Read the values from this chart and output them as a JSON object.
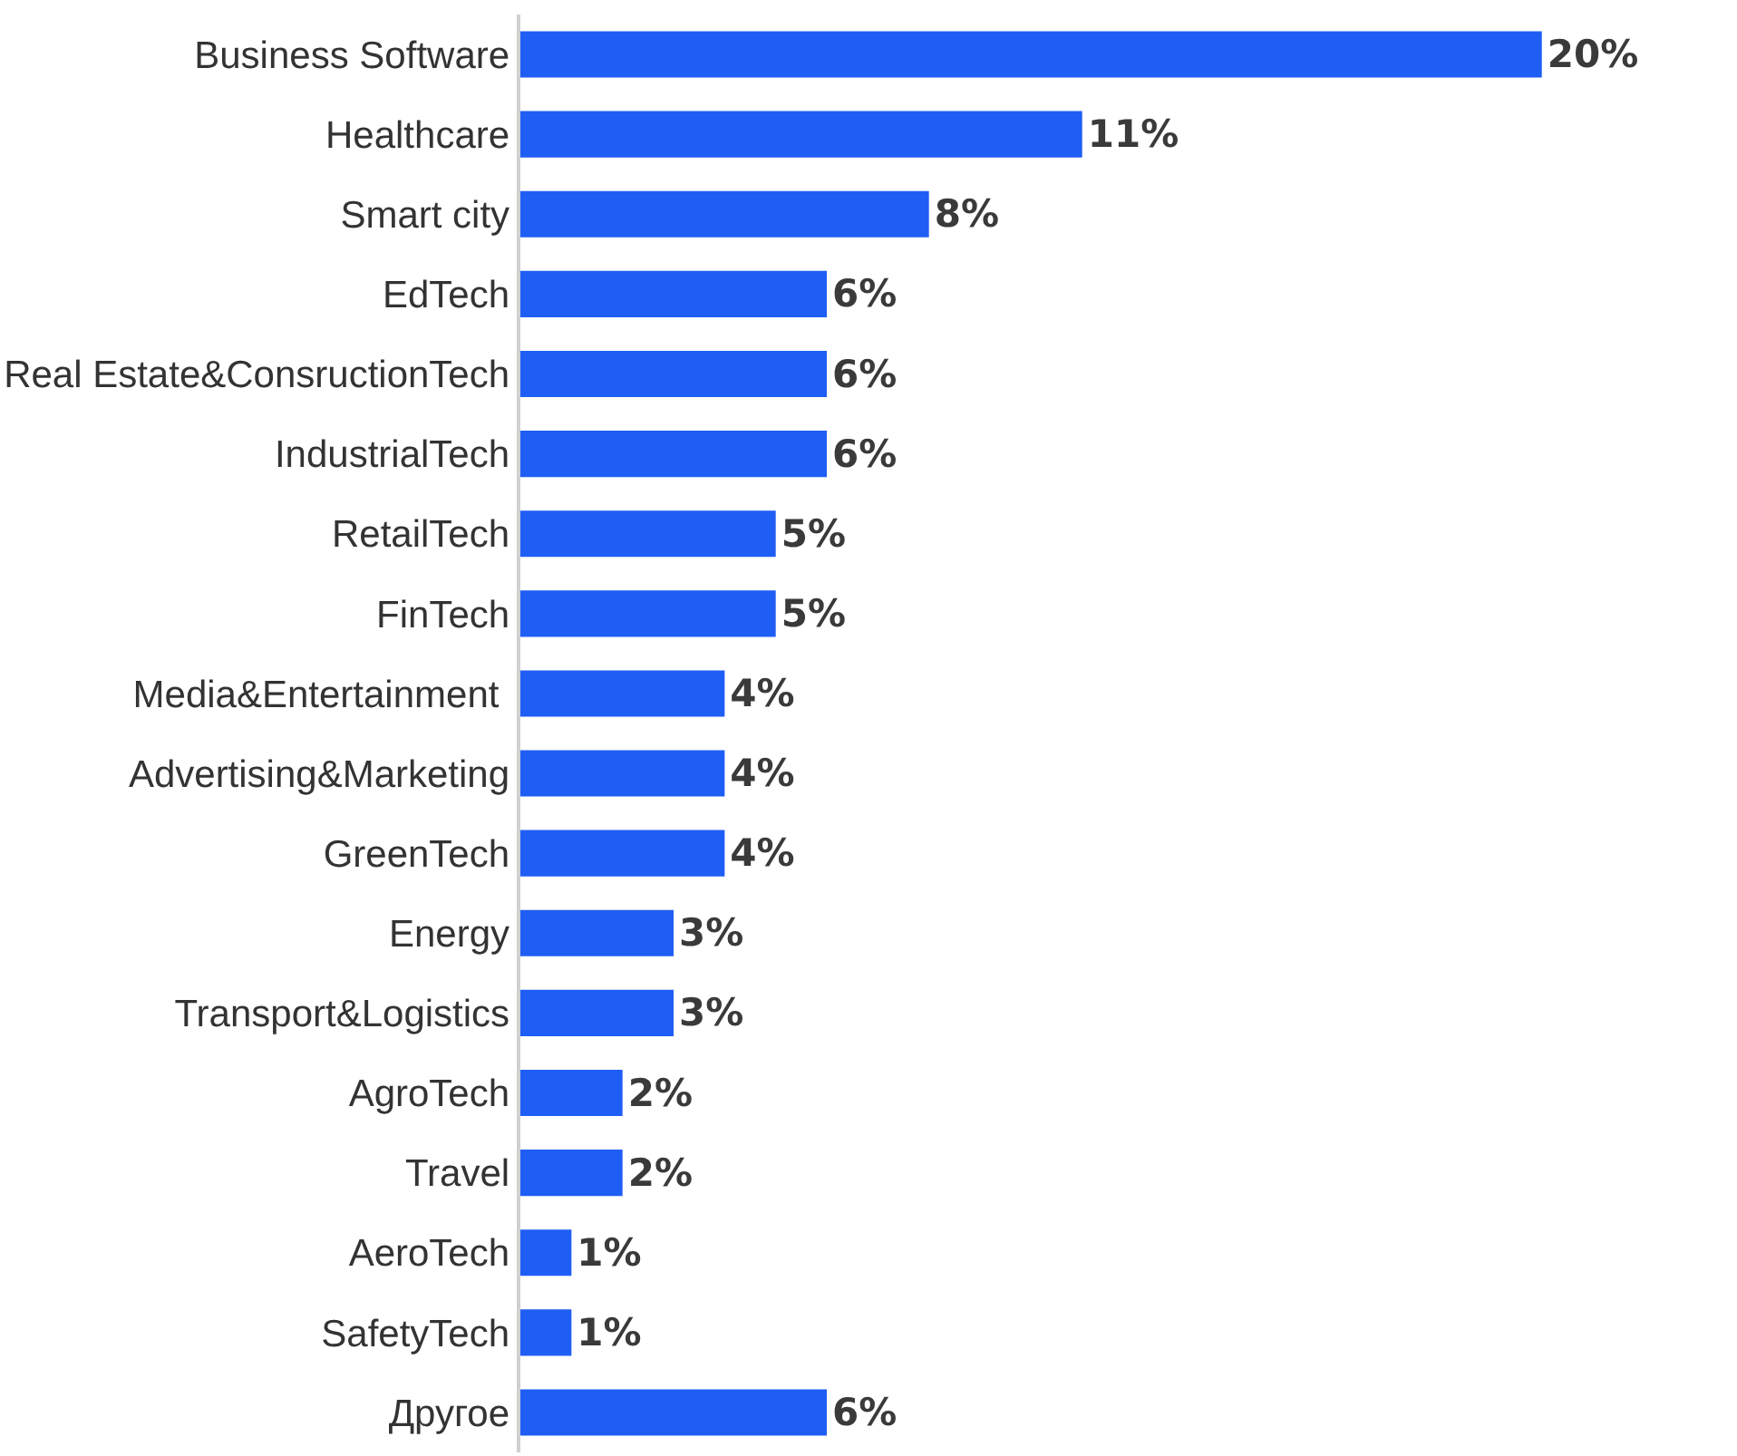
{
  "chart_data": {
    "type": "bar",
    "orientation": "horizontal",
    "categories": [
      "Business Software",
      "Healthcare",
      "Smart city",
      "EdTech",
      "Real Estate&ConsructionTech",
      "IndustrialTech",
      "RetailTech",
      "FinTech",
      "Media&Entertainment ",
      "Advertising&Marketing",
      "GreenTech",
      "Energy",
      "Transport&Logistics",
      "AgroTech",
      "Travel",
      "AeroTech",
      "SafetyTech",
      "Другое"
    ],
    "values": [
      20,
      11,
      8,
      6,
      6,
      6,
      5,
      5,
      4,
      4,
      4,
      3,
      3,
      2,
      2,
      1,
      1,
      6
    ],
    "value_labels": [
      "20%",
      "11%",
      "8%",
      "6%",
      "6%",
      "6%",
      "5%",
      "5%",
      "4%",
      "4%",
      "4%",
      "3%",
      "3%",
      "2%",
      "2%",
      "1%",
      "1%",
      "6%"
    ],
    "color": "#1f5ef5",
    "grid": false,
    "legend": false
  }
}
